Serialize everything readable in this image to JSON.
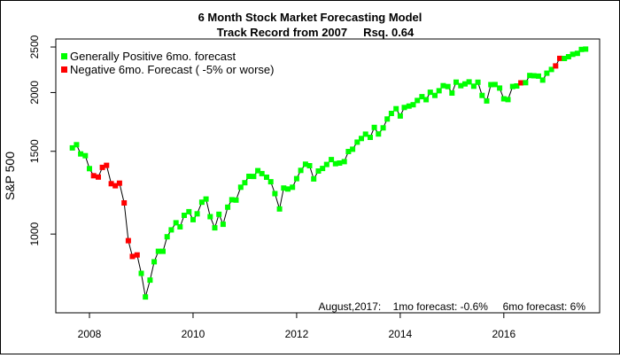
{
  "chart_data": {
    "type": "line",
    "title": "6 Month Stock Market Forecasting Model",
    "subtitle": "Track Record from 2007     Rsq. 0.64",
    "xlabel": "",
    "ylabel": "S&P 500",
    "y_scale": "log",
    "xlim": [
      2007.35,
      2017.85
    ],
    "ylim": [
      680,
      2600
    ],
    "x_ticks": [
      2008,
      2010,
      2012,
      2014,
      2016
    ],
    "x_tick_labels": [
      "2008",
      "2010",
      "2012",
      "2014",
      "2016"
    ],
    "y_ticks": [
      1000,
      1500,
      2000,
      2500
    ],
    "y_tick_labels": [
      "1000",
      "1500",
      "2000",
      "2500"
    ],
    "grid": false,
    "legend_position": "top-left",
    "legend": [
      {
        "label": "Generally Positive 6mo. forecast",
        "color": "#00ff00"
      },
      {
        "label": "Negative 6mo. Forecast ( -5% or worse)",
        "color": "#ff0000"
      }
    ],
    "annotation": "August,2017:    1mo forecast: -0.6%     6mo forecast: 6%",
    "line_color": "#000000",
    "series": [
      {
        "x": [
          2007.67,
          2007.75,
          2007.83,
          2007.92,
          2008.0,
          2008.08,
          2008.17,
          2008.25,
          2008.33,
          2008.42,
          2008.5,
          2008.58,
          2008.67,
          2008.75,
          2008.83,
          2008.92,
          2009.0,
          2009.08,
          2009.17,
          2009.25,
          2009.33,
          2009.42,
          2009.5,
          2009.58,
          2009.67,
          2009.75,
          2009.83,
          2009.92,
          2010.0,
          2010.08,
          2010.17,
          2010.25,
          2010.33,
          2010.42,
          2010.5,
          2010.58,
          2010.67,
          2010.75,
          2010.83,
          2010.92,
          2011.0,
          2011.08,
          2011.17,
          2011.25,
          2011.33,
          2011.42,
          2011.5,
          2011.58,
          2011.67,
          2011.75,
          2011.83,
          2011.92,
          2012.0,
          2012.08,
          2012.17,
          2012.25,
          2012.33,
          2012.42,
          2012.5,
          2012.58,
          2012.67,
          2012.75,
          2012.83,
          2012.92,
          2013.0,
          2013.08,
          2013.17,
          2013.25,
          2013.33,
          2013.42,
          2013.5,
          2013.58,
          2013.67,
          2013.75,
          2013.83,
          2013.92,
          2014.0,
          2014.08,
          2014.17,
          2014.25,
          2014.33,
          2014.42,
          2014.5,
          2014.58,
          2014.67,
          2014.75,
          2014.83,
          2014.92,
          2015.0,
          2015.08,
          2015.17,
          2015.25,
          2015.33,
          2015.42,
          2015.5,
          2015.58,
          2015.67,
          2015.75,
          2015.83,
          2015.92,
          2016.0,
          2016.08,
          2016.17,
          2016.25,
          2016.33,
          2016.42,
          2016.5,
          2016.58,
          2016.67,
          2016.75,
          2016.83,
          2016.92,
          2017.0,
          2017.08,
          2017.17,
          2017.25,
          2017.33,
          2017.42,
          2017.5,
          2017.58
        ],
        "y": [
          1525,
          1549,
          1481,
          1468,
          1378,
          1331,
          1322,
          1386,
          1400,
          1280,
          1267,
          1283,
          1165,
          968,
          896,
          903,
          825,
          735,
          798,
          873,
          919,
          919,
          987,
          1021,
          1057,
          1036,
          1096,
          1116,
          1073,
          1104,
          1169,
          1187,
          1089,
          1031,
          1102,
          1049,
          1141,
          1183,
          1181,
          1258,
          1286,
          1327,
          1326,
          1364,
          1345,
          1321,
          1292,
          1219,
          1131,
          1253,
          1247,
          1258,
          1312,
          1366,
          1408,
          1398,
          1310,
          1362,
          1379,
          1406,
          1440,
          1412,
          1416,
          1426,
          1498,
          1515,
          1569,
          1597,
          1631,
          1606,
          1686,
          1633,
          1682,
          1757,
          1806,
          1848,
          1783,
          1859,
          1872,
          1884,
          1924,
          1960,
          1931,
          2003,
          1972,
          2018,
          2068,
          2059,
          1995,
          2105,
          2068,
          2086,
          2107,
          2063,
          2104,
          1972,
          1920,
          2079,
          2080,
          2044,
          1940,
          1932,
          2060,
          2066,
          2097,
          2099,
          2174,
          2171,
          2168,
          2126,
          2199,
          2239,
          2279,
          2364,
          2363,
          2384,
          2412,
          2423,
          2470,
          2475
        ],
        "signal": [
          "p",
          "p",
          "p",
          "p",
          "p",
          "n",
          "n",
          "n",
          "n",
          "n",
          "n",
          "n",
          "n",
          "n",
          "n",
          "n",
          "p",
          "p",
          "p",
          "p",
          "p",
          "p",
          "p",
          "p",
          "p",
          "p",
          "p",
          "p",
          "p",
          "p",
          "p",
          "p",
          "p",
          "p",
          "p",
          "p",
          "p",
          "p",
          "p",
          "p",
          "p",
          "p",
          "p",
          "p",
          "p",
          "p",
          "p",
          "p",
          "p",
          "p",
          "p",
          "p",
          "p",
          "p",
          "p",
          "p",
          "p",
          "p",
          "p",
          "p",
          "p",
          "p",
          "p",
          "p",
          "p",
          "p",
          "p",
          "p",
          "p",
          "p",
          "p",
          "p",
          "p",
          "p",
          "p",
          "p",
          "p",
          "p",
          "p",
          "p",
          "p",
          "p",
          "p",
          "p",
          "p",
          "p",
          "p",
          "p",
          "p",
          "p",
          "p",
          "p",
          "p",
          "p",
          "p",
          "p",
          "p",
          "p",
          "p",
          "p",
          "p",
          "p",
          "p",
          "p",
          "n",
          "p",
          "p",
          "p",
          "p",
          "p",
          "p",
          "p",
          "n",
          "n",
          "p",
          "p",
          "p",
          "p",
          "p",
          "p"
        ]
      }
    ]
  }
}
